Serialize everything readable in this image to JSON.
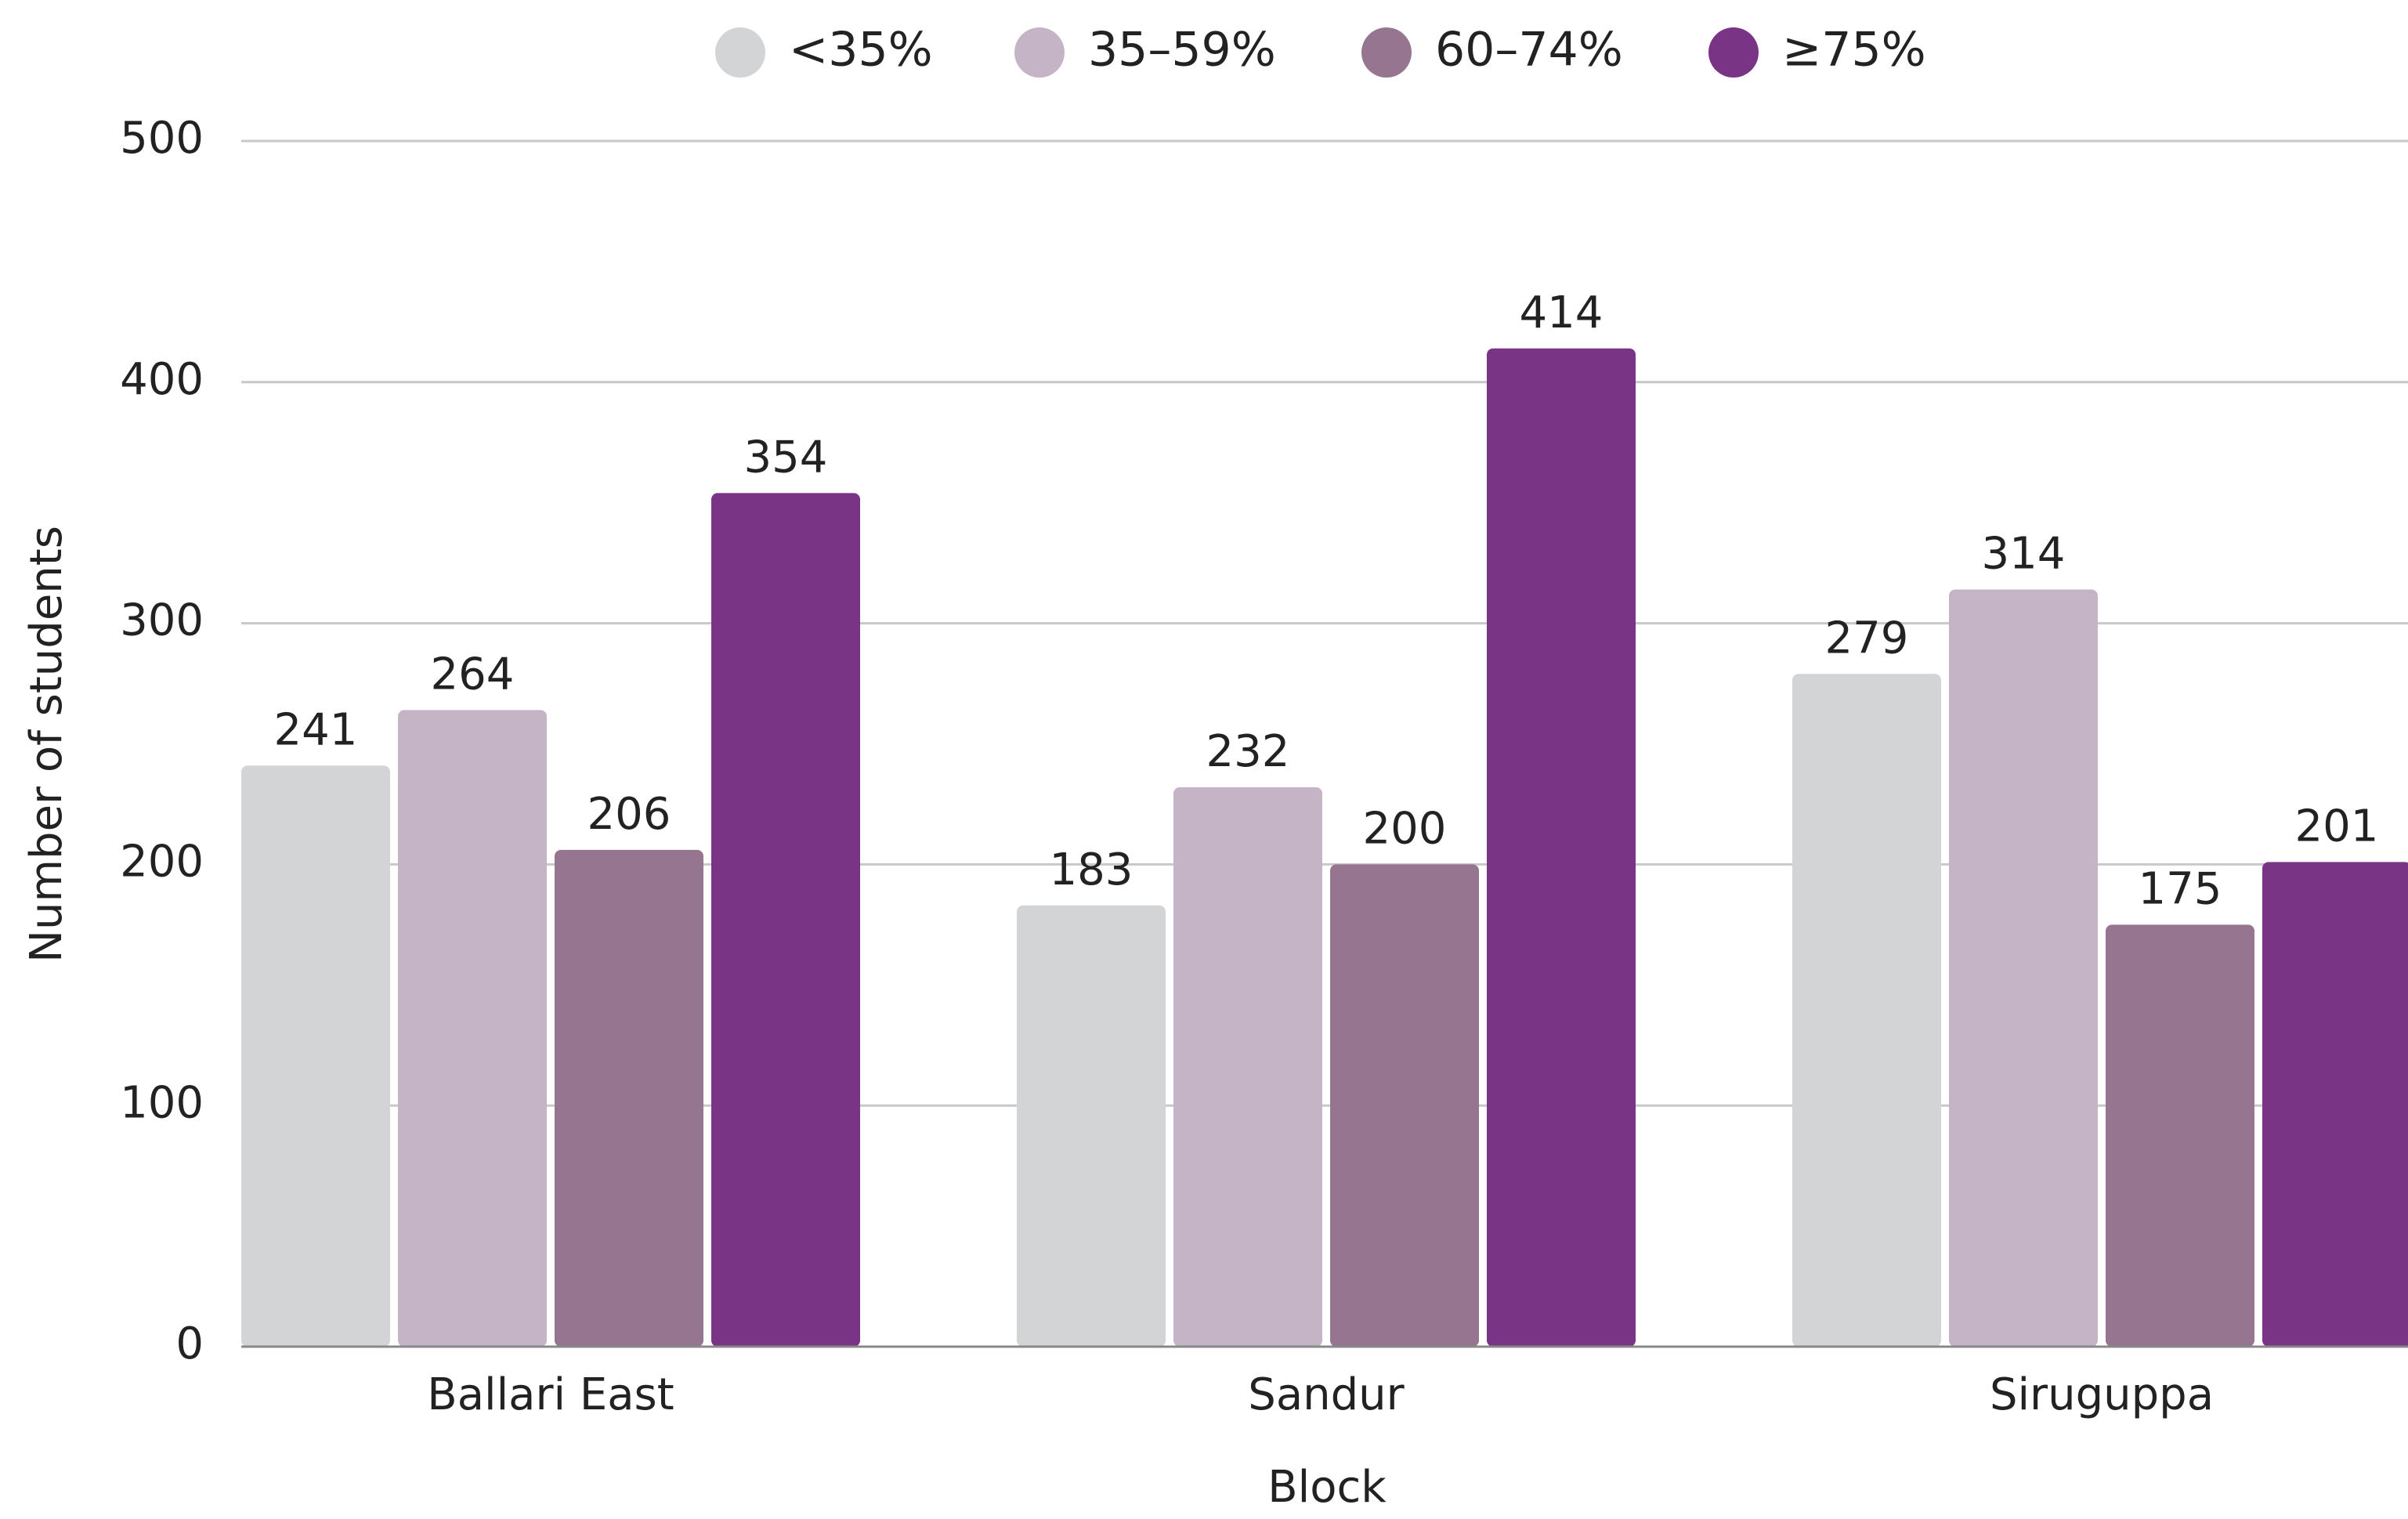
{
  "chart_data": {
    "type": "bar",
    "x_label": "Block",
    "y_label": "Number of students",
    "categories": [
      "Ballari East",
      "Sandur",
      "Siruguppa"
    ],
    "series": [
      {
        "name": "<35%",
        "color": "#d3d4d6",
        "values": [
          241,
          183,
          279
        ]
      },
      {
        "name": "35–59%",
        "color": "#c5b4c6",
        "values": [
          264,
          232,
          314
        ]
      },
      {
        "name": "60–74%",
        "color": "#957590",
        "values": [
          206,
          200,
          175
        ]
      },
      {
        "name": "≥75%",
        "color": "#7a3486",
        "values": [
          354,
          414,
          201
        ]
      }
    ],
    "ylim": [
      0,
      500
    ],
    "yticks": [
      0,
      100,
      200,
      300,
      400,
      500
    ],
    "grid": true,
    "legend": "top"
  }
}
